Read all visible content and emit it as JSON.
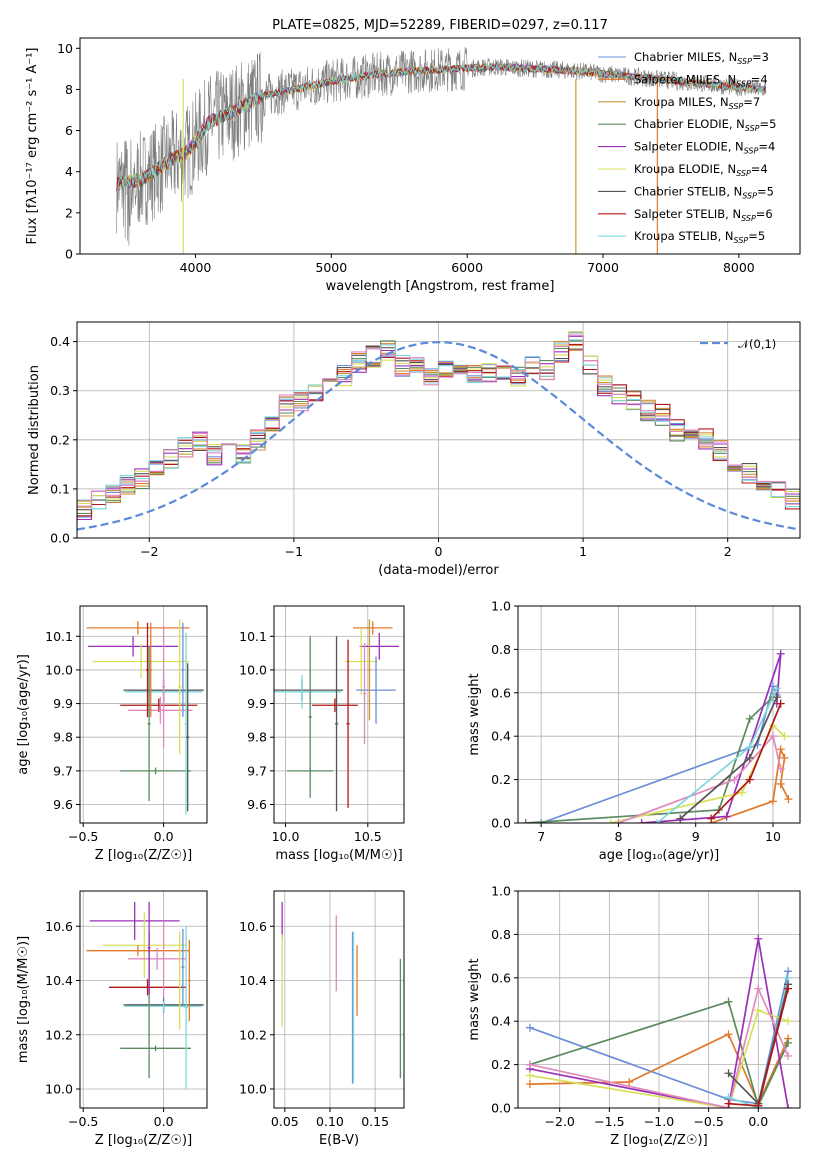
{
  "colors": {
    "chabrier_miles": "#6a8fd8",
    "salpeter_miles": "#e17a2c",
    "kroupa_miles": "#c99a3a",
    "chabrier_elodie": "#5a8a5e",
    "salpeter_elodie": "#9b30b8",
    "kroupa_elodie": "#d8e05a",
    "chabrier_stelib": "#555555",
    "salpeter_stelib": "#b01818",
    "kroupa_stelib": "#7ed8dc",
    "pink": "#e08ac0",
    "normal": "#5b8bd8",
    "data": "#7f7f7f"
  },
  "chart_data": [
    {
      "id": "spectrum",
      "type": "line",
      "title": "PLATE=0825, MJD=52289, FIBERID=0297, z=0.117",
      "xlabel": "wavelength [Angstrom, rest frame]",
      "ylabel": "Flux [fλ10⁻¹⁷ erg cm⁻² s⁻¹ A⁻¹]",
      "xlim": [
        3150,
        8450
      ],
      "ylim": [
        0,
        10.5
      ],
      "xticks": [
        4000,
        5000,
        6000,
        7000,
        8000
      ],
      "yticks": [
        0,
        2,
        4,
        6,
        8,
        10
      ],
      "legend_placement": "right",
      "legend": [
        "Chabrier MILES, N_SSP=3",
        "Salpeter MILES, N_SSP=4",
        "Kroupa MILES, N_SSP=7",
        "Chabrier ELODIE, N_SSP=5",
        "Salpeter ELODIE, N_SSP=4",
        "Kroupa ELODIE, N_SSP=4",
        "Chabrier STELIB, N_SSP=5",
        "Salpeter STELIB, N_SSP=6",
        "Kroupa STELIB, N_SSP=5"
      ],
      "continuum": [
        [
          3420,
          3.4
        ],
        [
          3600,
          3.6
        ],
        [
          3800,
          4.5
        ],
        [
          3950,
          5.0
        ],
        [
          4100,
          6.4
        ],
        [
          4300,
          7.0
        ],
        [
          4500,
          7.7
        ],
        [
          4800,
          8.1
        ],
        [
          5000,
          8.4
        ],
        [
          5300,
          8.7
        ],
        [
          5600,
          8.9
        ],
        [
          5900,
          9.0
        ],
        [
          6200,
          9.1
        ],
        [
          6500,
          9.0
        ],
        [
          6800,
          8.9
        ],
        [
          7100,
          8.7
        ],
        [
          7400,
          8.5
        ],
        [
          7700,
          8.3
        ],
        [
          8000,
          8.1
        ],
        [
          8200,
          8.0
        ]
      ]
    },
    {
      "id": "residuals",
      "type": "histogram",
      "xlabel": "(data-model)/error",
      "ylabel": "Normed distribution",
      "xlim": [
        -2.5,
        2.5
      ],
      "ylim": [
        0,
        0.44
      ],
      "xticks": [
        -2,
        -1,
        0,
        1,
        2
      ],
      "yticks": [
        0.0,
        0.1,
        0.2,
        0.3,
        0.4
      ],
      "grid": true,
      "legend_placement": "top-right",
      "legend": [
        "𝒩(0,1)"
      ],
      "bin_width": 0.1,
      "base_values": [
        0.015,
        0.03,
        0.04,
        0.045,
        0.05,
        0.06,
        0.075,
        0.09,
        0.105,
        0.12,
        0.14,
        0.16,
        0.185,
        0.2,
        0.17,
        0.19,
        0.175,
        0.2,
        0.23,
        0.27,
        0.28,
        0.3,
        0.32,
        0.33,
        0.36,
        0.37,
        0.38,
        0.35,
        0.36,
        0.33,
        0.34,
        0.33,
        0.33,
        0.34,
        0.33,
        0.33,
        0.35,
        0.34,
        0.38,
        0.4,
        0.35,
        0.31,
        0.29,
        0.28,
        0.26,
        0.25,
        0.22,
        0.21,
        0.2,
        0.18,
        0.14,
        0.13,
        0.12,
        0.1,
        0.08,
        0.075,
        0.07,
        0.06,
        0.04,
        0.035
      ]
    },
    {
      "id": "age_vs_Z",
      "type": "scatter",
      "xlabel": "Z [log₁₀(Z/Z☉)]",
      "ylabel": "age [log₁₀(age/yr)]",
      "xlim": [
        -0.52,
        0.27
      ],
      "ylim": [
        9.545,
        10.19
      ],
      "xticks": [
        -0.5,
        0.0
      ],
      "yticks": [
        9.6,
        9.7,
        9.8,
        9.9,
        10.0,
        10.1
      ],
      "points": [
        {
          "c": "salpeter_miles",
          "x": -0.16,
          "xe": 0.32,
          "y": 10.125,
          "ye": 0.02
        },
        {
          "c": "salpeter_elodie",
          "x": -0.19,
          "xe": 0.28,
          "y": 10.07,
          "ye": 0.03
        },
        {
          "c": "kroupa_elodie",
          "x": -0.14,
          "xe": 0.3,
          "y": 10.025,
          "ye": 0.05
        },
        {
          "c": "chabrier_miles",
          "x": 0.0,
          "xe": 0.22,
          "y": 9.94,
          "ye": 0.05
        },
        {
          "c": "chabrier_stelib",
          "x": 0.0,
          "xe": 0.25,
          "y": 9.94,
          "ye": 0.03
        },
        {
          "c": "kroupa_stelib",
          "x": 0.0,
          "xe": 0.24,
          "y": 9.935,
          "ye": 0.04
        },
        {
          "c": "salpeter_stelib",
          "x": -0.03,
          "xe": 0.24,
          "y": 9.895,
          "ye": 0.02
        },
        {
          "c": "pink",
          "x": -0.02,
          "xe": 0.2,
          "y": 9.88,
          "ye": 0.04
        },
        {
          "c": "chabrier_elodie",
          "x": -0.05,
          "xe": 0.22,
          "y": 9.7,
          "ye": 0.01
        },
        {
          "c": "salpeter_stelib",
          "x": -0.1,
          "xe": 0.01,
          "y": 10.0,
          "ye": 0.14
        },
        {
          "c": "chabrier_elodie",
          "x": -0.09,
          "xe": 0.01,
          "y": 9.84,
          "ye": 0.23
        },
        {
          "c": "salpeter_miles",
          "x": -0.08,
          "xe": 0.01,
          "y": 10.0,
          "ye": 0.14
        },
        {
          "c": "pink",
          "x": 0.0,
          "xe": 0.01,
          "y": 9.95,
          "ye": 0.18
        },
        {
          "c": "kroupa_elodie",
          "x": 0.1,
          "xe": 0.01,
          "y": 9.95,
          "ye": 0.2
        },
        {
          "c": "chabrier_miles",
          "x": 0.12,
          "xe": 0.01,
          "y": 10.0,
          "ye": 0.14
        },
        {
          "c": "kroupa_stelib",
          "x": 0.14,
          "xe": 0.01,
          "y": 9.84,
          "ye": 0.27
        },
        {
          "c": "chabrier_stelib",
          "x": 0.15,
          "xe": 0.01,
          "y": 9.8,
          "ye": 0.22
        }
      ]
    },
    {
      "id": "age_vs_mass",
      "type": "scatter",
      "xlabel": "mass [log₁₀(M/M☉)]",
      "ylabel": "",
      "xlim": [
        9.93,
        10.72
      ],
      "ylim": [
        9.545,
        10.19
      ],
      "xticks": [
        10.0,
        10.5
      ],
      "yticks": [
        9.6,
        9.7,
        9.8,
        9.9,
        10.0,
        10.1
      ],
      "points": [
        {
          "c": "salpeter_miles",
          "x": 10.53,
          "xe": 0.12,
          "y": 10.125,
          "ye": 0.02
        },
        {
          "c": "salpeter_elodie",
          "x": 10.57,
          "xe": 0.12,
          "y": 10.07,
          "ye": 0.04
        },
        {
          "c": "kroupa_elodie",
          "x": 10.46,
          "xe": 0.1,
          "y": 10.025,
          "ye": 0.1
        },
        {
          "c": "chabrier_miles",
          "x": 10.55,
          "xe": 0.12,
          "y": 9.94,
          "ye": 0.1
        },
        {
          "c": "chabrier_stelib",
          "x": 10.1,
          "xe": 0.25,
          "y": 9.94,
          "ye": 0.03
        },
        {
          "c": "kroupa_stelib",
          "x": 10.1,
          "xe": 0.24,
          "y": 9.935,
          "ye": 0.05
        },
        {
          "c": "salpeter_stelib",
          "x": 10.3,
          "xe": 0.14,
          "y": 9.895,
          "ye": 0.02
        },
        {
          "c": "chabrier_elodie",
          "x": 10.15,
          "xe": 0.14,
          "y": 9.7,
          "ye": 0.01
        },
        {
          "c": "chabrier_elodie",
          "x": 10.15,
          "xe": 0.01,
          "y": 9.86,
          "ye": 0.24
        },
        {
          "c": "chabrier_stelib",
          "x": 10.31,
          "xe": 0.01,
          "y": 9.84,
          "ye": 0.26
        },
        {
          "c": "salpeter_stelib",
          "x": 10.38,
          "xe": 0.01,
          "y": 9.84,
          "ye": 0.25
        },
        {
          "c": "pink",
          "x": 10.48,
          "xe": 0.01,
          "y": 9.93,
          "ye": 0.15
        },
        {
          "c": "kroupa_miles",
          "x": 10.51,
          "xe": 0.01,
          "y": 10.0,
          "ye": 0.15
        }
      ]
    },
    {
      "id": "weight_vs_age",
      "type": "line",
      "xlabel": "age [log₁₀(age/yr)]",
      "ylabel": "mass weight",
      "xlim": [
        6.7,
        10.35
      ],
      "ylim": [
        0,
        1
      ],
      "xticks": [
        7,
        8,
        9,
        10
      ],
      "yticks": [
        0.0,
        0.2,
        0.4,
        0.6,
        0.8,
        1.0
      ],
      "series": [
        {
          "c": "chabrier_miles",
          "x": [
            7.0,
            9.8,
            10.0,
            10.05
          ],
          "y": [
            0.0,
            0.36,
            0.63,
            0.59
          ]
        },
        {
          "c": "salpeter_miles",
          "x": [
            9.2,
            10.0,
            10.1,
            10.15,
            10.1,
            10.2
          ],
          "y": [
            0.0,
            0.1,
            0.34,
            0.3,
            0.18,
            0.11
          ]
        },
        {
          "c": "chabrier_elodie",
          "x": [
            6.8,
            9.3,
            9.7,
            10.0
          ],
          "y": [
            0.0,
            0.06,
            0.48,
            0.58
          ]
        },
        {
          "c": "salpeter_elodie",
          "x": [
            8.3,
            9.4,
            10.1,
            10.05
          ],
          "y": [
            0.0,
            0.03,
            0.78,
            0.55
          ]
        },
        {
          "c": "kroupa_elodie",
          "x": [
            7.9,
            9.6,
            10.0,
            10.15
          ],
          "y": [
            0.0,
            0.14,
            0.45,
            0.4
          ]
        },
        {
          "c": "pink",
          "x": [
            8.0,
            9.5,
            10.0,
            10.1
          ],
          "y": [
            0.0,
            0.2,
            0.4,
            0.25
          ]
        },
        {
          "c": "kroupa_stelib",
          "x": [
            8.5,
            9.7,
            10.05
          ],
          "y": [
            0.0,
            0.35,
            0.62
          ]
        },
        {
          "c": "chabrier_stelib",
          "x": [
            8.8,
            9.7,
            10.05
          ],
          "y": [
            0.02,
            0.3,
            0.58
          ]
        },
        {
          "c": "salpeter_stelib",
          "x": [
            9.2,
            9.7,
            10.1
          ],
          "y": [
            0.02,
            0.2,
            0.55
          ]
        }
      ]
    },
    {
      "id": "mass_vs_Z",
      "type": "scatter",
      "xlabel": "Z [log₁₀(Z/Z☉)]",
      "ylabel": "mass [log₁₀(M/M☉)]",
      "xlim": [
        -0.52,
        0.27
      ],
      "ylim": [
        9.93,
        10.73
      ],
      "xticks": [
        -0.5,
        0.0
      ],
      "yticks": [
        10.0,
        10.2,
        10.4,
        10.6
      ],
      "points": [
        {
          "c": "salpeter_elodie",
          "x": -0.18,
          "xe": 0.28,
          "y": 10.62,
          "ye": 0.07
        },
        {
          "c": "kroupa_elodie",
          "x": -0.12,
          "xe": 0.26,
          "y": 10.53,
          "ye": 0.12
        },
        {
          "c": "salpeter_miles",
          "x": -0.16,
          "xe": 0.32,
          "y": 10.51,
          "ye": 0.02
        },
        {
          "c": "pink",
          "x": -0.04,
          "xe": 0.18,
          "y": 10.48,
          "ye": 0.04
        },
        {
          "c": "salpeter_stelib",
          "x": -0.1,
          "xe": 0.24,
          "y": 10.375,
          "ye": 0.03
        },
        {
          "c": "chabrier_miles",
          "x": 0.0,
          "xe": 0.23,
          "y": 10.31,
          "ye": 0.03
        },
        {
          "c": "chabrier_stelib",
          "x": 0.0,
          "xe": 0.25,
          "y": 10.31,
          "ye": 0.02
        },
        {
          "c": "kroupa_stelib",
          "x": 0.0,
          "xe": 0.24,
          "y": 10.305,
          "ye": 0.02
        },
        {
          "c": "chabrier_elodie",
          "x": -0.05,
          "xe": 0.22,
          "y": 10.15,
          "ye": 0.01
        },
        {
          "c": "chabrier_elodie",
          "x": -0.09,
          "xe": 0.01,
          "y": 10.31,
          "ye": 0.27
        },
        {
          "c": "salpeter_elodie",
          "x": -0.09,
          "xe": 0.01,
          "y": 10.52,
          "ye": 0.17
        },
        {
          "c": "pink",
          "x": 0.0,
          "xe": 0.01,
          "y": 10.48,
          "ye": 0.14
        },
        {
          "c": "kroupa_elodie",
          "x": 0.1,
          "xe": 0.01,
          "y": 10.4,
          "ye": 0.18
        },
        {
          "c": "chabrier_miles",
          "x": 0.12,
          "xe": 0.01,
          "y": 10.45,
          "ye": 0.14
        },
        {
          "c": "kroupa_stelib",
          "x": 0.14,
          "xe": 0.01,
          "y": 10.3,
          "ye": 0.3
        },
        {
          "c": "salpeter_miles",
          "x": 0.16,
          "xe": 0.01,
          "y": 10.4,
          "ye": 0.15
        }
      ]
    },
    {
      "id": "mass_vs_ebv",
      "type": "scatter",
      "xlabel": "E(B-V)",
      "ylabel": "",
      "xlim": [
        0.038,
        0.182
      ],
      "ylim": [
        9.93,
        10.73
      ],
      "xticks": [
        0.05,
        0.1,
        0.15
      ],
      "yticks": [
        10.0,
        10.2,
        10.4,
        10.6
      ],
      "points": [
        {
          "c": "salpeter_elodie",
          "x": 0.047,
          "xe": 0.0003,
          "y": 10.62,
          "ye": 0.07
        },
        {
          "c": "kroupa_elodie",
          "x": 0.047,
          "xe": 0.0003,
          "y": 10.4,
          "ye": 0.17
        },
        {
          "c": "pink",
          "x": 0.107,
          "xe": 0.0003,
          "y": 10.5,
          "ye": 0.14
        },
        {
          "c": "salpeter_miles",
          "x": 0.13,
          "xe": 0.0003,
          "y": 10.4,
          "ye": 0.13
        },
        {
          "c": "chabrier_miles",
          "x": 0.125,
          "xe": 0.0003,
          "y": 10.3,
          "ye": 0.28
        },
        {
          "c": "kroupa_stelib",
          "x": 0.126,
          "xe": 0.0003,
          "y": 10.3,
          "ye": 0.28
        },
        {
          "c": "chabrier_elodie",
          "x": 0.178,
          "xe": 0.0003,
          "y": 10.26,
          "ye": 0.22
        }
      ]
    },
    {
      "id": "weight_vs_Z",
      "type": "line",
      "xlabel": "Z [log₁₀(Z/Z☉)]",
      "ylabel": "mass weight",
      "xlim": [
        -2.42,
        0.42
      ],
      "ylim": [
        0,
        1
      ],
      "xticks": [
        -2.0,
        -1.5,
        -1.0,
        -0.5,
        0.0
      ],
      "yticks": [
        0.0,
        0.2,
        0.4,
        0.6,
        0.8,
        1.0
      ],
      "series": [
        {
          "c": "chabrier_miles",
          "x": [
            -2.3,
            -0.3,
            0.0,
            0.3
          ],
          "y": [
            0.37,
            0.04,
            0.02,
            0.63
          ]
        },
        {
          "c": "salpeter_miles",
          "x": [
            -2.3,
            -1.3,
            -0.3,
            0.0,
            0.3
          ],
          "y": [
            0.11,
            0.12,
            0.34,
            0.02,
            0.32
          ]
        },
        {
          "c": "chabrier_elodie",
          "x": [
            -2.3,
            -0.3,
            0.0,
            0.3
          ],
          "y": [
            0.2,
            0.49,
            0.01,
            0.3
          ]
        },
        {
          "c": "salpeter_elodie",
          "x": [
            -2.3,
            -0.3,
            0.0,
            0.3
          ],
          "y": [
            0.18,
            0.0,
            0.78,
            0.0
          ]
        },
        {
          "c": "kroupa_elodie",
          "x": [
            -2.3,
            -0.3,
            0.0,
            0.3
          ],
          "y": [
            0.15,
            0.0,
            0.45,
            0.4
          ]
        },
        {
          "c": "pink",
          "x": [
            -2.3,
            -0.3,
            0.0,
            0.3
          ],
          "y": [
            0.2,
            0.0,
            0.55,
            0.24
          ]
        },
        {
          "c": "kroupa_stelib",
          "x": [
            -0.3,
            0.0,
            0.3
          ],
          "y": [
            0.05,
            0.0,
            0.6
          ]
        },
        {
          "c": "chabrier_stelib",
          "x": [
            -0.3,
            0.0,
            0.3
          ],
          "y": [
            0.16,
            0.02,
            0.57
          ]
        },
        {
          "c": "salpeter_stelib",
          "x": [
            -0.3,
            0.0,
            0.3
          ],
          "y": [
            0.02,
            0.01,
            0.55
          ]
        }
      ]
    }
  ]
}
